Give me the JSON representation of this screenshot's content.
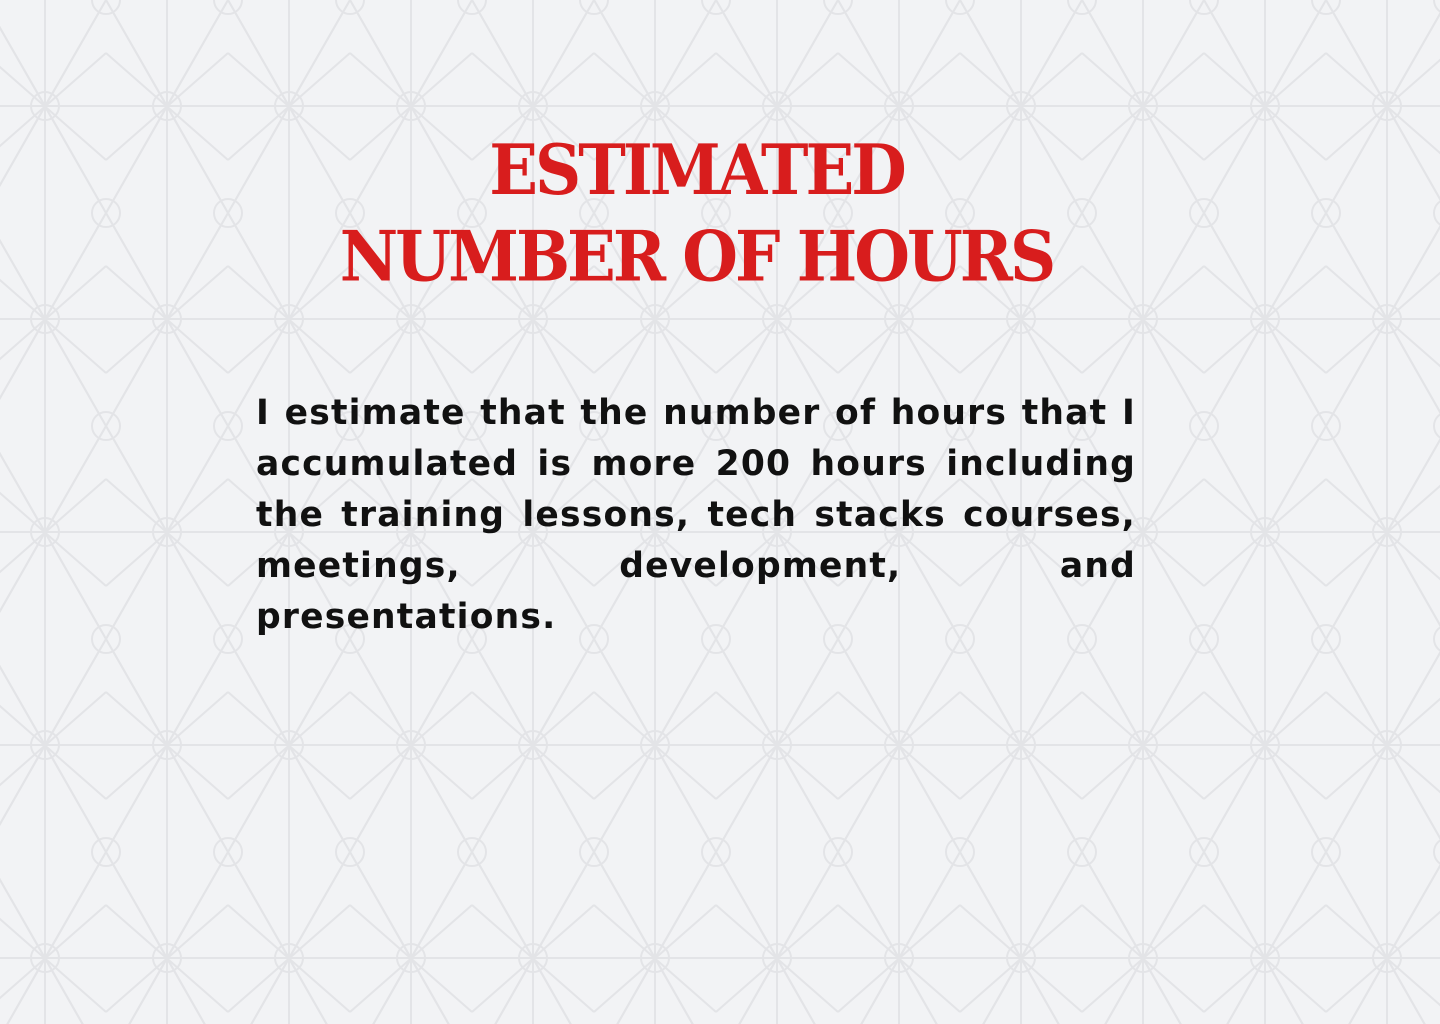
{
  "colors": {
    "background": "#f2f3f5",
    "pattern": "#e4e5e8",
    "title": "#d81d1d",
    "body_text": "#111111"
  },
  "title": {
    "line1": "ESTIMATED",
    "line2": "NUMBER OF HOURS"
  },
  "body": {
    "paragraph": "I estimate that the number of hours that I accumulated is more 200 hours including the training lessons, tech stacks courses, meetings, development, and presentations."
  }
}
